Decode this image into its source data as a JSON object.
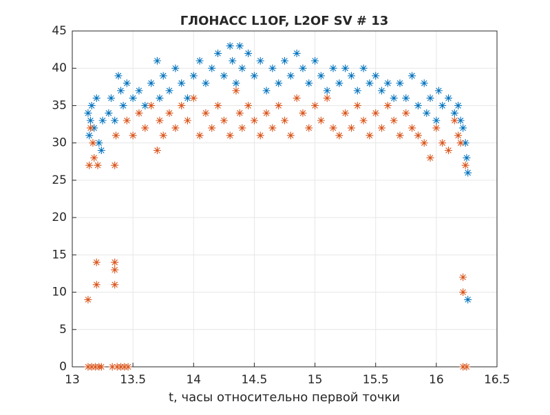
{
  "chart_data": {
    "type": "scatter",
    "title": "ГЛОНАСС L1OF, L2OF SV # 13",
    "xlabel": "t, часы относительно первой точки",
    "xlim": [
      13,
      16.5
    ],
    "xticks": [
      13,
      13.5,
      14,
      14.5,
      15,
      15.5,
      16,
      16.5
    ],
    "ylim": [
      0,
      45
    ],
    "yticks": [
      0,
      5,
      10,
      15,
      20,
      25,
      30,
      35,
      40,
      45
    ],
    "grid": true,
    "marker": "asterisk",
    "series": [
      {
        "color": "#0072BD",
        "x": [
          13.13,
          13.14,
          13.15,
          13.16,
          13.18,
          13.2,
          13.22,
          13.24,
          13.25,
          13.3,
          13.32,
          13.35,
          13.38,
          13.4,
          13.42,
          13.45,
          13.5,
          13.55,
          13.6,
          13.65,
          13.7,
          13.72,
          13.75,
          13.8,
          13.85,
          13.9,
          13.95,
          14.0,
          14.05,
          14.1,
          14.15,
          14.2,
          14.25,
          14.3,
          14.32,
          14.35,
          14.38,
          14.4,
          14.45,
          14.5,
          14.55,
          14.6,
          14.65,
          14.7,
          14.75,
          14.8,
          14.85,
          14.9,
          14.95,
          15.0,
          15.05,
          15.1,
          15.15,
          15.2,
          15.25,
          15.3,
          15.35,
          15.4,
          15.45,
          15.5,
          15.55,
          15.6,
          15.65,
          15.7,
          15.75,
          15.8,
          15.85,
          15.9,
          15.92,
          15.95,
          16.0,
          16.02,
          16.05,
          16.1,
          16.15,
          16.18,
          16.2,
          16.22,
          16.24,
          16.25,
          16.26,
          16.26
        ],
        "values": [
          34,
          31,
          33,
          35,
          32,
          36,
          30,
          29,
          33,
          34,
          36,
          33,
          39,
          37,
          35,
          38,
          36,
          37,
          35,
          38,
          41,
          36,
          39,
          37,
          40,
          38,
          36,
          39,
          41,
          38,
          40,
          42,
          39,
          43,
          41,
          38,
          43,
          40,
          42,
          39,
          41,
          37,
          40,
          38,
          41,
          39,
          42,
          40,
          38,
          41,
          39,
          37,
          40,
          38,
          40,
          39,
          37,
          40,
          38,
          39,
          37,
          38,
          36,
          38,
          36,
          39,
          35,
          38,
          34,
          36,
          33,
          37,
          35,
          36,
          34,
          35,
          33,
          32,
          30,
          28,
          26,
          9
        ]
      },
      {
        "color": "#D95319",
        "x": [
          13.13,
          13.13,
          13.14,
          13.15,
          13.16,
          13.17,
          13.18,
          13.19,
          13.2,
          13.2,
          13.21,
          13.22,
          13.24,
          13.33,
          13.35,
          13.35,
          13.35,
          13.35,
          13.36,
          13.37,
          13.4,
          13.43,
          13.46,
          13.45,
          13.5,
          13.55,
          13.6,
          13.65,
          13.7,
          13.72,
          13.75,
          13.8,
          13.85,
          13.9,
          13.95,
          14.0,
          14.05,
          14.1,
          14.15,
          14.2,
          14.25,
          14.3,
          14.35,
          14.38,
          14.4,
          14.45,
          14.5,
          14.55,
          14.6,
          14.65,
          14.7,
          14.75,
          14.8,
          14.85,
          14.9,
          14.95,
          15.0,
          15.05,
          15.1,
          15.15,
          15.2,
          15.25,
          15.3,
          15.35,
          15.4,
          15.45,
          15.5,
          15.55,
          15.6,
          15.65,
          15.7,
          15.75,
          15.8,
          15.85,
          15.9,
          15.95,
          16.0,
          16.05,
          16.1,
          16.15,
          16.18,
          16.2,
          16.22,
          16.22,
          16.22,
          16.24,
          16.25
        ],
        "values": [
          9,
          0,
          27,
          32,
          0,
          30,
          28,
          0,
          14,
          11,
          27,
          0,
          0,
          0,
          14,
          13,
          11,
          27,
          31,
          0,
          0,
          0,
          0,
          33,
          31,
          34,
          32,
          35,
          29,
          33,
          31,
          34,
          32,
          35,
          33,
          36,
          31,
          34,
          32,
          35,
          33,
          31,
          37,
          34,
          32,
          35,
          33,
          31,
          34,
          32,
          35,
          33,
          31,
          36,
          34,
          32,
          35,
          33,
          36,
          32,
          31,
          34,
          32,
          35,
          33,
          31,
          34,
          32,
          35,
          33,
          31,
          34,
          32,
          31,
          30,
          28,
          32,
          30,
          29,
          33,
          31,
          30,
          12,
          10,
          0,
          27,
          0
        ]
      }
    ]
  }
}
